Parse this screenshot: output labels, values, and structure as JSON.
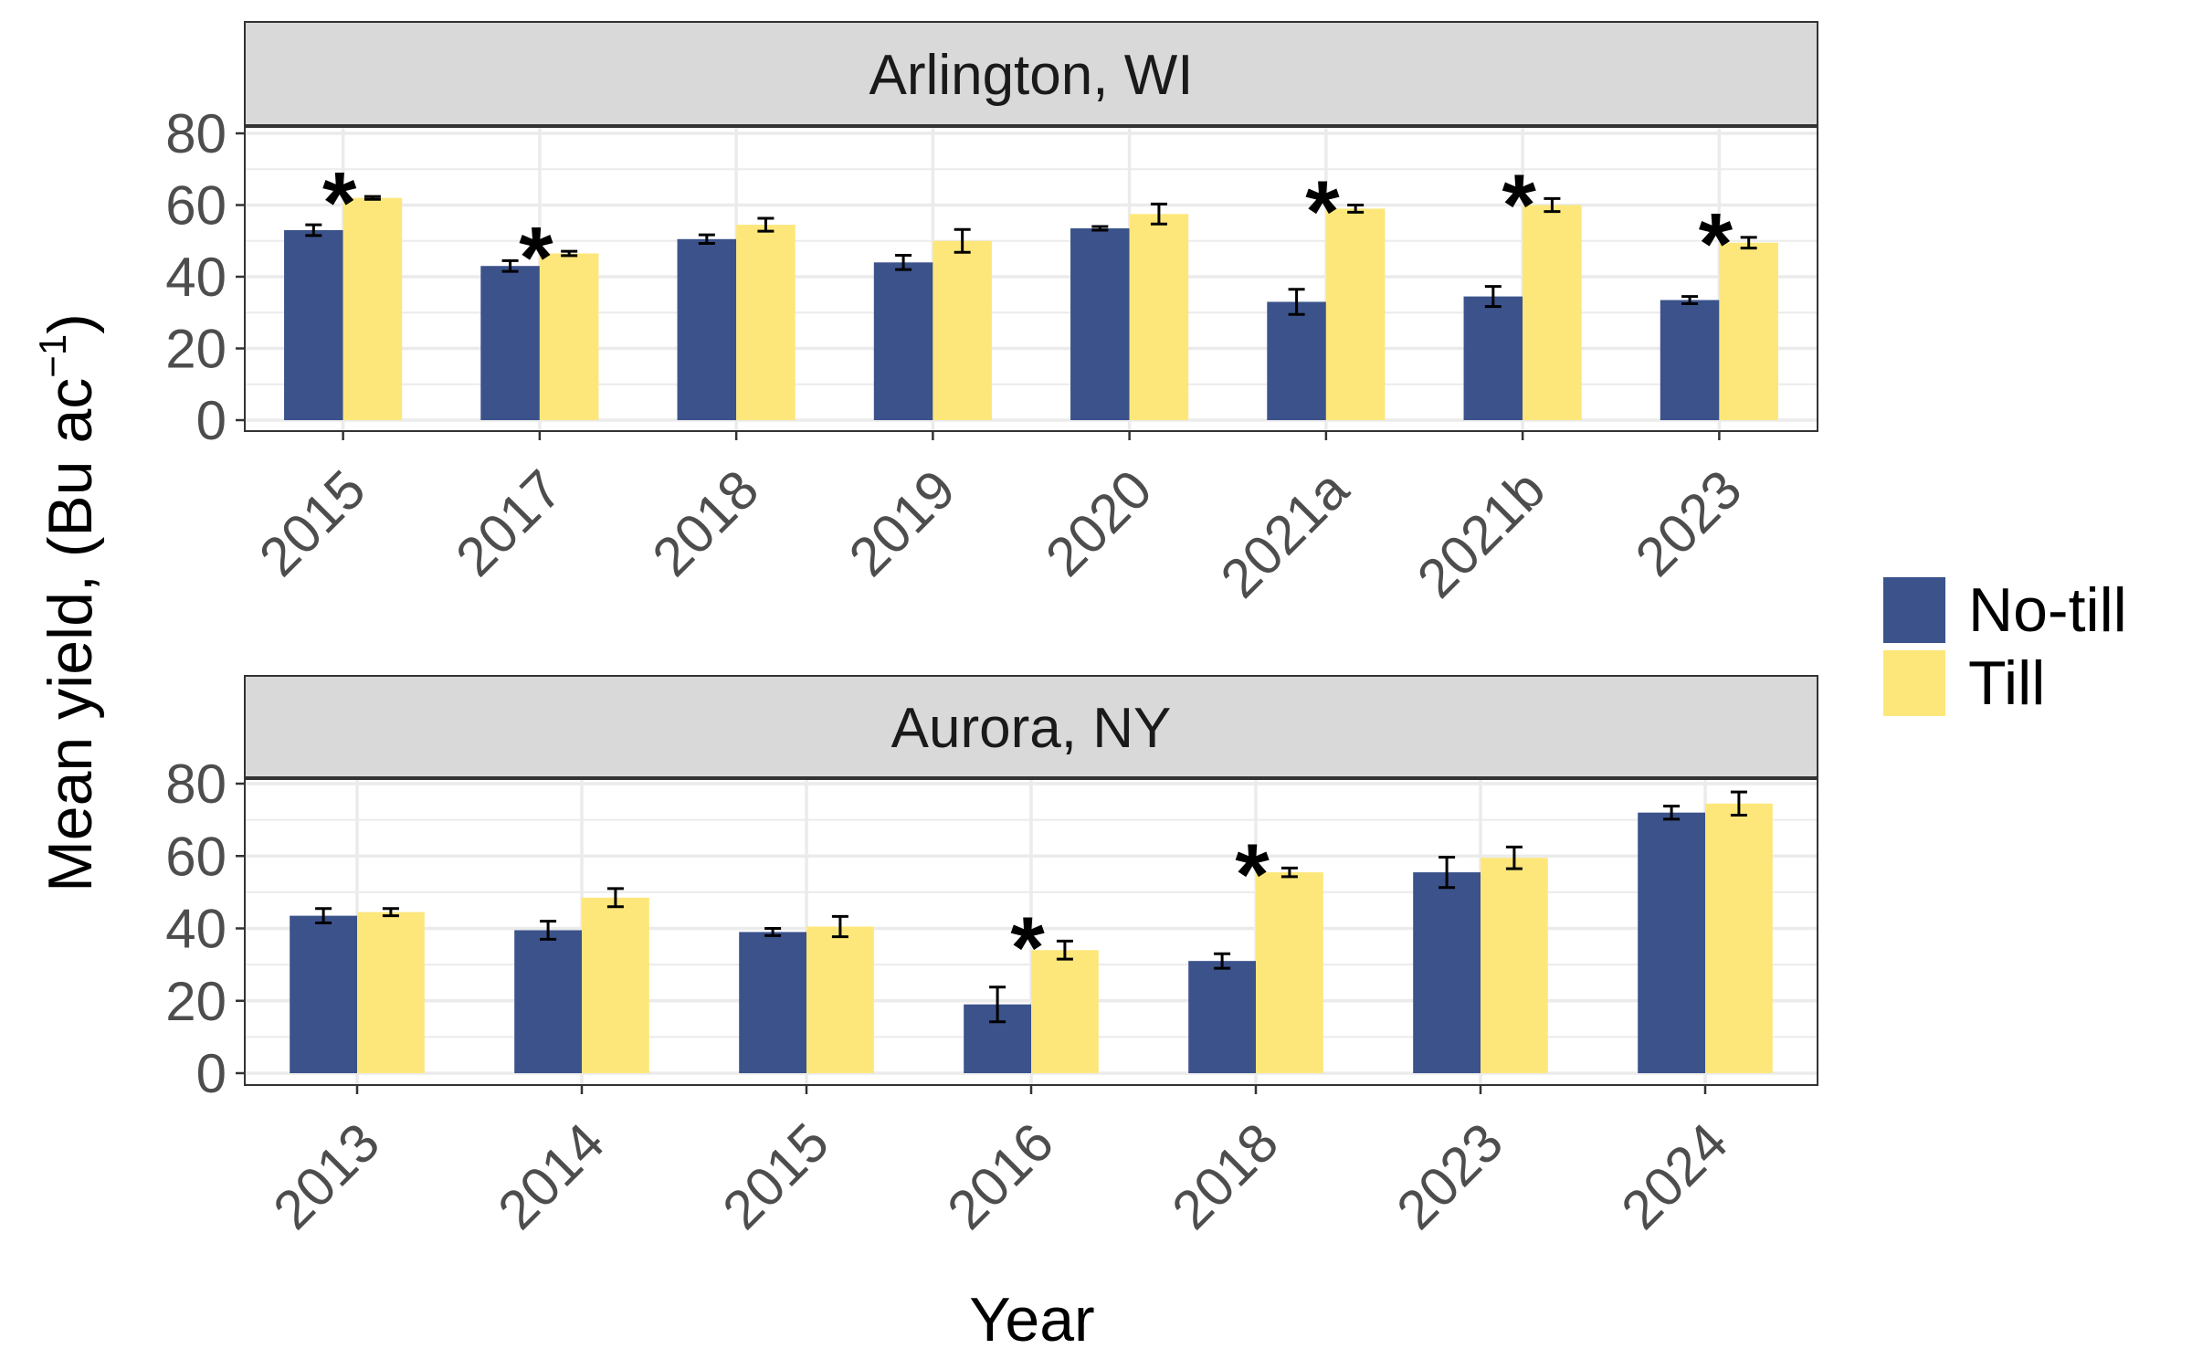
{
  "chart_data": {
    "type": "bar",
    "xlabel": "Year",
    "ylabel": {
      "main": "Mean yield, (Bu  ac",
      "superscript": "−1",
      "close": ")"
    },
    "ylim": [
      0,
      80
    ],
    "yticks": [
      0,
      20,
      40,
      60,
      80
    ],
    "grid": true,
    "legend_position": "right",
    "colors": {
      "No-till": "#3b528b",
      "Till": "#fde77a",
      "strip_bg": "#d9d9d9",
      "grid": "#ebebeb"
    },
    "legend": [
      "No-till",
      "Till"
    ],
    "significance_marker": "*",
    "panels": [
      {
        "strip": "Arlington, WI",
        "categories": [
          "2015",
          "2017",
          "2018",
          "2019",
          "2020",
          "2021a",
          "2021b",
          "2023"
        ],
        "series": [
          {
            "name": "No-till",
            "values": [
              53,
              43,
              50.5,
              44,
              53.5,
              33,
              34.5,
              33.5
            ],
            "errors": [
              1.5,
              1.5,
              1.2,
              2.0,
              0.5,
              3.5,
              2.8,
              1.0
            ]
          },
          {
            "name": "Till",
            "values": [
              62,
              46.5,
              54.5,
              50,
              57.5,
              59,
              60,
              49.5
            ],
            "errors": [
              0.4,
              0.6,
              1.8,
              3.2,
              2.8,
              1.0,
              1.8,
              1.5
            ]
          }
        ],
        "significant": [
          true,
          true,
          false,
          false,
          false,
          true,
          true,
          true
        ]
      },
      {
        "strip": "Aurora, NY",
        "categories": [
          "2013",
          "2014",
          "2015",
          "2016",
          "2018",
          "2023",
          "2024"
        ],
        "series": [
          {
            "name": "No-till",
            "values": [
              43.5,
              39.5,
              39,
              19,
              31,
              55.5,
              72
            ],
            "errors": [
              2.0,
              2.5,
              1.0,
              4.8,
              2.0,
              4.2,
              1.8
            ]
          },
          {
            "name": "Till",
            "values": [
              44.5,
              48.5,
              40.5,
              34,
              55.5,
              59.5,
              74.5
            ],
            "errors": [
              1.0,
              2.5,
              2.8,
              2.5,
              1.2,
              3.0,
              3.2
            ]
          }
        ],
        "significant": [
          false,
          false,
          false,
          true,
          true,
          false,
          false
        ]
      }
    ]
  }
}
